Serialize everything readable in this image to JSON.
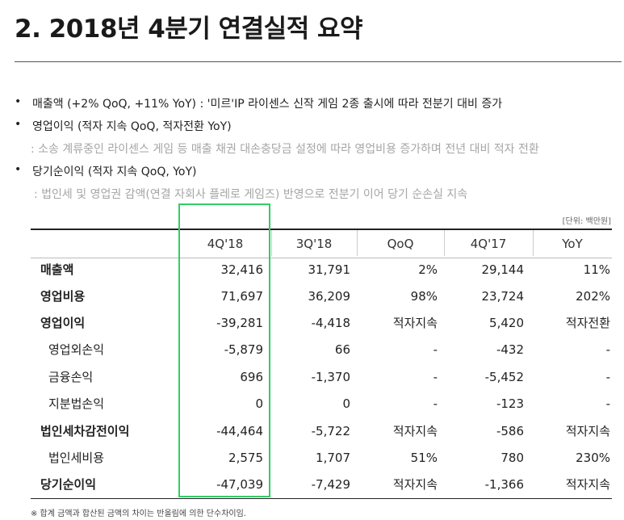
{
  "title": "2. 2018년 4분기 연결실적 요약",
  "bullets": [
    {
      "marker": "•",
      "text": "매출액 (+2% QoQ, +11% YoY) : '미르'IP 라이센스 신작 게임 2종 출시에 따라 전분기 대비 증가",
      "sub": ""
    },
    {
      "marker": "•",
      "text": "영업이익 (적자 지속 QoQ, 적자전환 YoY)",
      "sub": ": 소송 계류중인 라이센스 게임 등 매출 채권 대손충당금 설정에 따라 영업비용 증가하며 전년 대비 적자 전환"
    },
    {
      "marker": "•",
      "text": "당기순이익 (적자 지속 QoQ, YoY)",
      "sub": ": 법인세 및 영업권 감액(연결 자회사 플레로 게임즈) 반영으로 전분기 이어 당기 순손실 지속"
    }
  ],
  "unit_note": "[단위: 백만원]",
  "table": {
    "columns": [
      "",
      "4Q'18",
      "3Q'18",
      "QoQ",
      "4Q'17",
      "YoY"
    ],
    "rows": [
      {
        "label": "매출액",
        "values": [
          "32,416",
          "31,791",
          "2%",
          "29,144",
          "11%"
        ]
      },
      {
        "label": "영업비용",
        "values": [
          "71,697",
          "36,209",
          "98%",
          "23,724",
          "202%"
        ]
      },
      {
        "label": "영업이익",
        "values": [
          "-39,281",
          "-4,418",
          "적자지속",
          "5,420",
          "적자전환"
        ]
      },
      {
        "label": "영업외손익",
        "values": [
          "-5,879",
          "66",
          "-",
          "-432",
          "-"
        ]
      },
      {
        "label": "금융손익",
        "values": [
          "696",
          "-1,370",
          "-",
          "-5,452",
          "-"
        ]
      },
      {
        "label": "지분법손익",
        "values": [
          "0",
          "0",
          "-",
          "-123",
          "-"
        ]
      },
      {
        "label": "법인세차감전이익",
        "values": [
          "-44,464",
          "-5,722",
          "적자지속",
          "-586",
          "적자지속"
        ]
      },
      {
        "label": "법인세비용",
        "values": [
          "2,575",
          "1,707",
          "51%",
          "780",
          "230%"
        ]
      },
      {
        "label": "당기순이익",
        "values": [
          "-47,039",
          "-7,429",
          "적자지속",
          "-1,366",
          "적자지속"
        ]
      }
    ]
  },
  "highlight_color": "#33cc66",
  "footnote": "※ 합계 금액과 합산된 금액의 차이는 반올림에 의한 단수차이임."
}
